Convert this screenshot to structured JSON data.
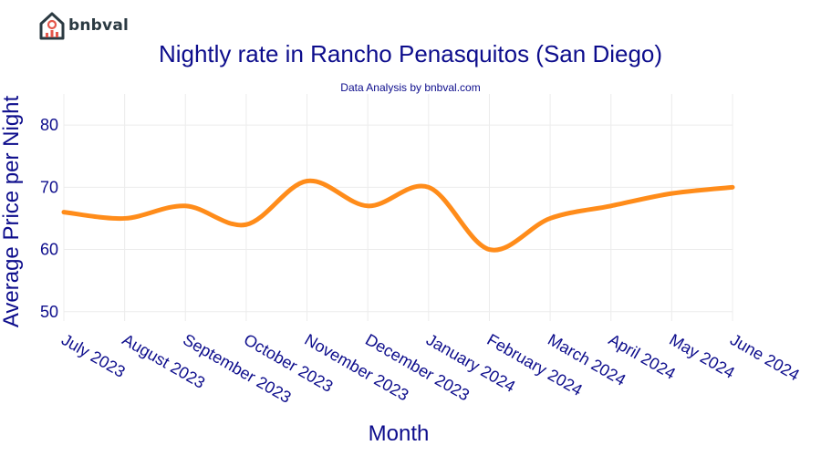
{
  "logo": {
    "text": "bnbval"
  },
  "chart_data": {
    "type": "line",
    "title": "Nightly rate in Rancho Penasquitos (San Diego)",
    "subtitle": "Data Analysis by bnbval.com",
    "xlabel": "Month",
    "ylabel": "Average Price per Night",
    "categories": [
      "July 2023",
      "August 2023",
      "September 2023",
      "October 2023",
      "November 2023",
      "December 2023",
      "January 2024",
      "February 2024",
      "March 2024",
      "April 2024",
      "May 2024",
      "June 2024"
    ],
    "series": [
      {
        "values": [
          66,
          65,
          67,
          64,
          71,
          67,
          70,
          60,
          65,
          67,
          69,
          70
        ]
      }
    ],
    "yticks": [
      50,
      60,
      70,
      80
    ],
    "ylim": [
      48.5,
      85
    ],
    "grid": true,
    "colors": {
      "line": "#ff8c1a",
      "grid": "#ececec",
      "text": "#0d0d8c"
    }
  }
}
